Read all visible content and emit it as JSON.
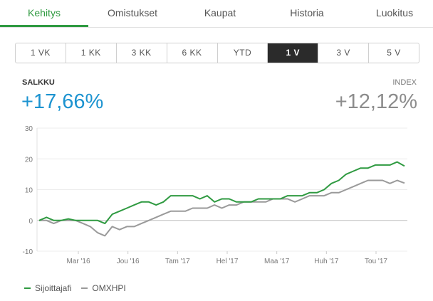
{
  "tabs": [
    {
      "label": "Kehitys",
      "active": true
    },
    {
      "label": "Omistukset",
      "active": false
    },
    {
      "label": "Kaupat",
      "active": false
    },
    {
      "label": "Historia",
      "active": false
    },
    {
      "label": "Luokitus",
      "active": false
    }
  ],
  "periods": [
    {
      "label": "1 VK",
      "active": false
    },
    {
      "label": "1 KK",
      "active": false
    },
    {
      "label": "3 KK",
      "active": false
    },
    {
      "label": "6 KK",
      "active": false
    },
    {
      "label": "YTD",
      "active": false
    },
    {
      "label": "1 V",
      "active": true
    },
    {
      "label": "3 V",
      "active": false
    },
    {
      "label": "5 V",
      "active": false
    }
  ],
  "summary": {
    "left_label": "SALKKU",
    "left_value": "+17,66%",
    "right_label": "INDEX",
    "right_value": "+12,12%"
  },
  "colors": {
    "accent_green": "#2f9a41",
    "index_gray": "#9a9a9a",
    "value_blue": "#1c93d0"
  },
  "chart_data": {
    "type": "line",
    "ylim": [
      -10,
      30
    ],
    "yticks": [
      "30",
      "20",
      "10",
      "0",
      "-10"
    ],
    "xticks": [
      "Mar '16",
      "Jou '16",
      "Tam '17",
      "Hel '17",
      "Maa '17",
      "Huh '17",
      "Tou '17"
    ],
    "series": [
      {
        "name": "Sijoittajafi",
        "values": [
          0,
          1,
          0,
          0,
          0.5,
          0,
          0,
          0,
          0,
          -1,
          2,
          3,
          4,
          5,
          6,
          6,
          5,
          6,
          8,
          8,
          8,
          8,
          7,
          8,
          6,
          7,
          7,
          6,
          6,
          6,
          7,
          7,
          7,
          7,
          8,
          8,
          8,
          9,
          9,
          10,
          12,
          13,
          15,
          16,
          17,
          17,
          18,
          18,
          18,
          19,
          17.66
        ]
      },
      {
        "name": "OMXHPI",
        "values": [
          0,
          0,
          -1,
          0,
          0,
          0,
          -1,
          -2,
          -4,
          -5,
          -2,
          -3,
          -2,
          -2,
          -1,
          0,
          1,
          2,
          3,
          3,
          3,
          4,
          4,
          4,
          5,
          4,
          5,
          5,
          6,
          6,
          6,
          6,
          7,
          7,
          7,
          6,
          7,
          8,
          8,
          8,
          9,
          9,
          10,
          11,
          12,
          13,
          13,
          13,
          12,
          13,
          12.12
        ]
      }
    ]
  },
  "legend": [
    {
      "label": "Sijoittajafi",
      "color": "#2f9a41"
    },
    {
      "label": "OMXHPI",
      "color": "#9a9a9a"
    }
  ]
}
